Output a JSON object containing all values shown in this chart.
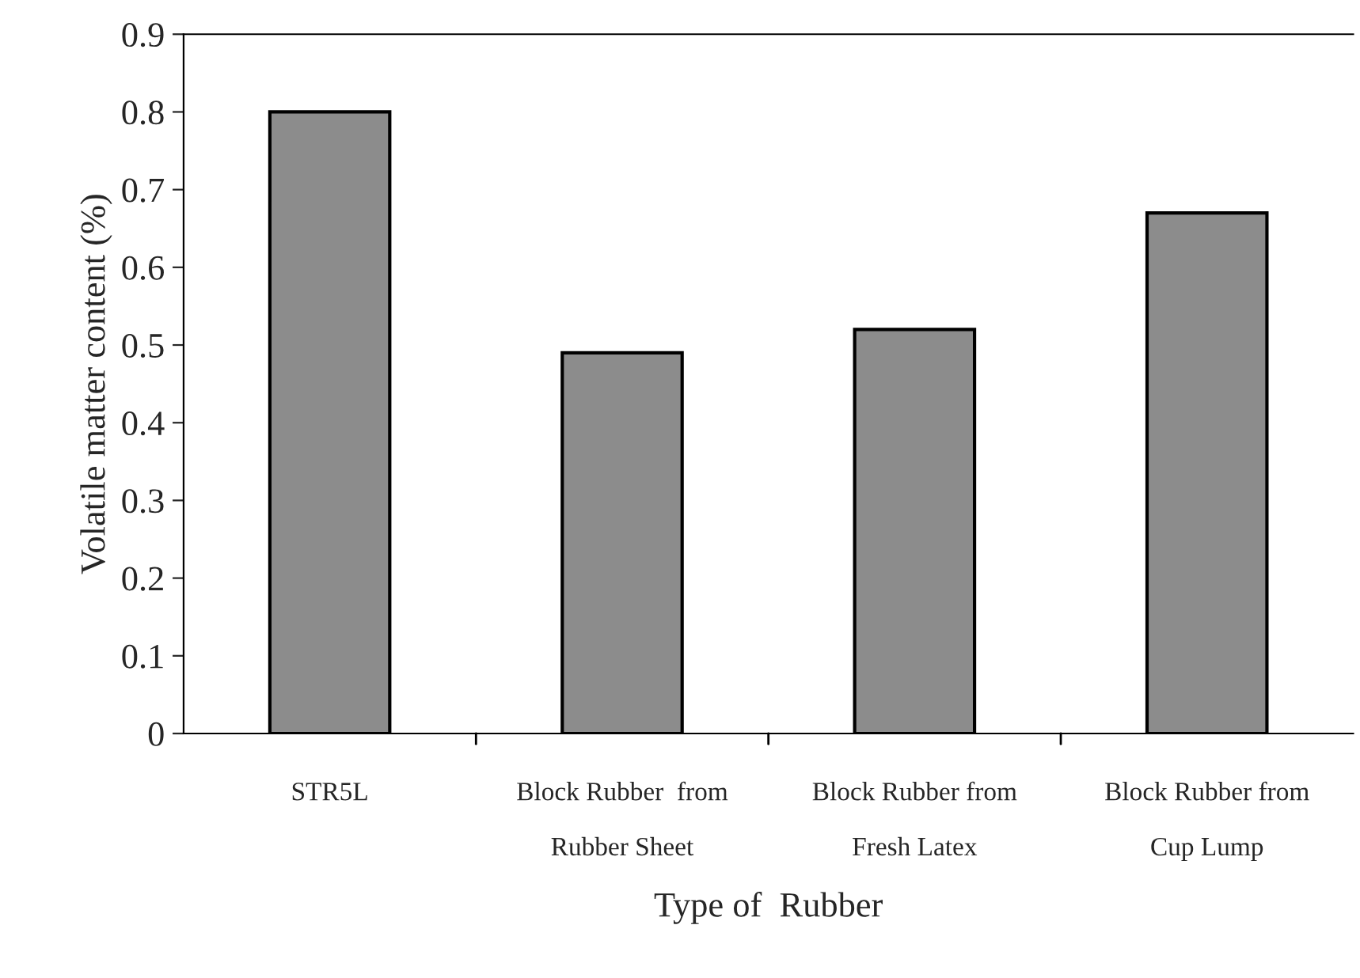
{
  "chart_data": {
    "type": "bar",
    "categories": [
      "STR5L",
      "Block Rubber  from\n\nRubber Sheet",
      "Block Rubber from\n\nFresh Latex",
      "Block Rubber from\n\nCup Lump"
    ],
    "values": [
      0.8,
      0.49,
      0.52,
      0.67
    ],
    "color": "#8c8c8c",
    "xlabel": "Type of  Rubber",
    "ylabel": "Volatile matter content (%)",
    "ylim": [
      0,
      0.9
    ],
    "yticks": [
      0,
      0.1,
      0.2,
      0.3,
      0.4,
      0.5,
      0.6,
      0.7,
      0.8,
      0.9
    ],
    "grid": false,
    "legend": false
  }
}
